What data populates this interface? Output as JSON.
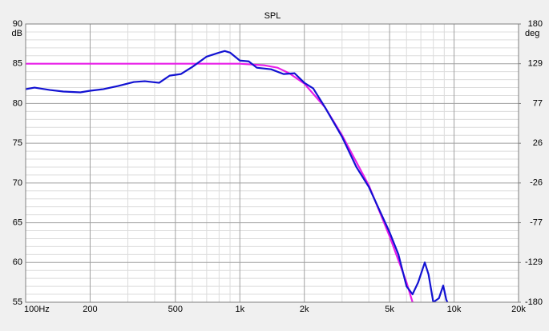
{
  "chart_data": {
    "type": "line",
    "title": "SPL",
    "ylabel": "dB",
    "y2label": "deg",
    "xscale": "log",
    "grid": true,
    "xlim": [
      100,
      20000
    ],
    "xticks": [
      {
        "value": 100,
        "label": "100Hz"
      },
      200,
      500,
      {
        "value": 1000,
        "label": "1k"
      },
      {
        "value": 2000,
        "label": "2k"
      },
      {
        "value": 5000,
        "label": "5k"
      },
      {
        "value": 10000,
        "label": "10k"
      },
      {
        "value": 20000,
        "label": "20k"
      }
    ],
    "xminorticks": [
      300,
      400,
      600,
      700,
      800,
      900,
      3000,
      4000,
      6000,
      7000,
      8000,
      9000,
      30000
    ],
    "ylim": [
      55,
      90
    ],
    "yticks": [
      55,
      60,
      65,
      70,
      75,
      80,
      85,
      90
    ],
    "yminorticks": [
      56,
      57,
      58,
      59,
      61,
      62,
      63,
      64,
      66,
      67,
      68,
      69,
      71,
      72,
      73,
      74,
      76,
      77,
      78,
      79,
      81,
      82,
      83,
      84,
      86,
      87,
      88,
      89
    ],
    "y2lim": [
      -180,
      180
    ],
    "y2ticks": [
      {
        "value": -180,
        "label": "-180"
      },
      {
        "value": -128.6,
        "label": "-129"
      },
      {
        "value": -77.1,
        "label": "-77"
      },
      {
        "value": -25.7,
        "label": "-26"
      },
      {
        "value": 25.7,
        "label": "26"
      },
      {
        "value": 77.1,
        "label": "77"
      },
      {
        "value": 128.6,
        "label": "129"
      },
      {
        "value": 180,
        "label": "180"
      }
    ],
    "series": [
      {
        "color": "#e81ee8",
        "x": [
          100,
          500,
          1000,
          1300,
          1500,
          1700,
          2000,
          2500,
          3000,
          4000,
          5000,
          6000,
          6400
        ],
        "values": [
          85,
          85,
          85,
          84.8,
          84.5,
          83.8,
          82.5,
          79.5,
          76,
          69.7,
          63.3,
          57.5,
          55
        ]
      },
      {
        "color": "#1212d2",
        "x": [
          100,
          110,
          130,
          150,
          180,
          200,
          230,
          270,
          320,
          360,
          420,
          470,
          530,
          600,
          700,
          800,
          850,
          900,
          1000,
          1100,
          1200,
          1400,
          1600,
          1800,
          2000,
          2200,
          2500,
          3000,
          3500,
          4000,
          4500,
          5000,
          5500,
          6000,
          6400,
          6800,
          7300,
          7600,
          8000,
          8500,
          8900,
          9200,
          9500
        ],
        "values": [
          81.8,
          82.0,
          81.7,
          81.5,
          81.4,
          81.6,
          81.8,
          82.2,
          82.7,
          82.8,
          82.6,
          83.5,
          83.7,
          84.6,
          85.9,
          86.4,
          86.6,
          86.4,
          85.4,
          85.3,
          84.5,
          84.3,
          83.7,
          83.8,
          82.6,
          81.9,
          79.5,
          75.8,
          72.0,
          69.5,
          66.5,
          63.8,
          61.0,
          57.0,
          56.0,
          57.5,
          60.0,
          58.5,
          55.0,
          55.5,
          57.1,
          55.3,
          54.5
        ]
      }
    ]
  }
}
